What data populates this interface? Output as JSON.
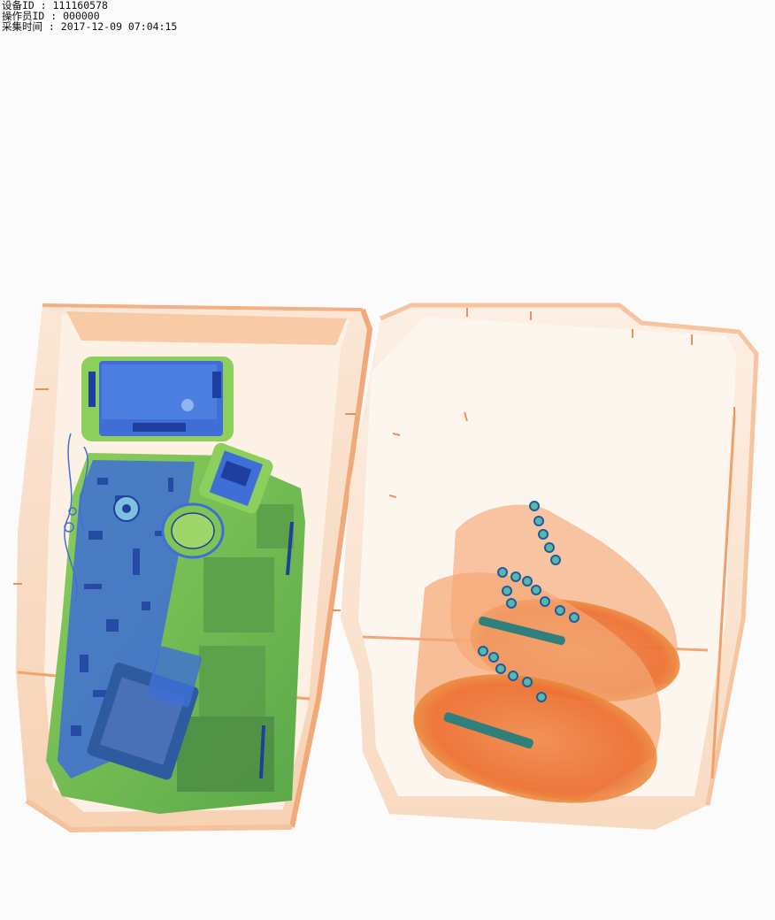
{
  "header": {
    "device_id": "设备ID : 111160578",
    "operator_id": "操作员ID : 000000",
    "capture_time": "采集时间 : 2017-12-09 07:04:15"
  },
  "scan": {
    "subject": "x-ray-image-of-two-trays",
    "colors": {
      "background": "#fbfbfb",
      "tray_orange": "#f3a161",
      "organic_orange": "#ec6a2c",
      "inorganic_green": "#7fc455",
      "metal_blue": "#3f6fd6",
      "dense_dark": "#2e5aa0"
    }
  }
}
